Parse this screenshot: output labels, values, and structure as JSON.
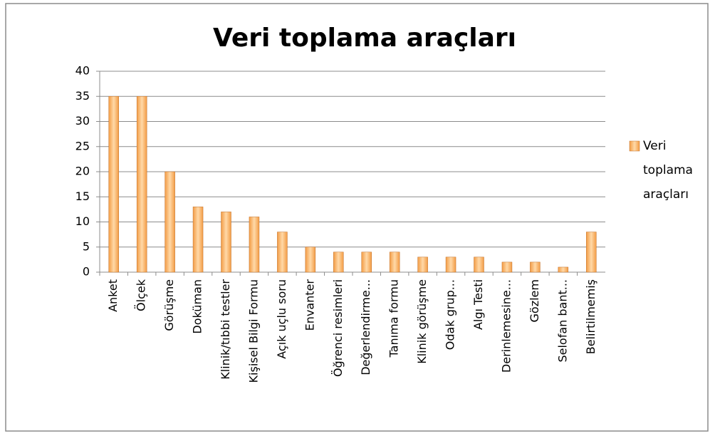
{
  "chart_data": {
    "type": "bar",
    "title": "Veri toplama araçları",
    "categories": [
      "Anket",
      "Ölçek",
      "Görüşme",
      "Doküman",
      "Klinik/tıbbi testler",
      "Kişisel Bilgi Formu",
      "Açık uçlu soru",
      "Envanter",
      "Öğrenci resimleri",
      "Değerlendirme...",
      "Tanıma formu",
      "Klinik görüşme",
      "Odak grup...",
      "Algı Testi",
      "Derinlemesine...",
      "Gözlem",
      "Selofan bant...",
      "Belirtilmemiş"
    ],
    "series": [
      {
        "name": "Veri toplama araçları",
        "color": "#f39c45",
        "values": [
          35,
          35,
          20,
          13,
          12,
          11,
          8,
          5,
          4,
          4,
          4,
          3,
          3,
          3,
          2,
          2,
          1,
          8
        ]
      }
    ],
    "ylim": [
      0,
      40
    ],
    "yticks": [
      0,
      5,
      10,
      15,
      20,
      25,
      30,
      35,
      40
    ],
    "grid": true,
    "legend": "right"
  }
}
